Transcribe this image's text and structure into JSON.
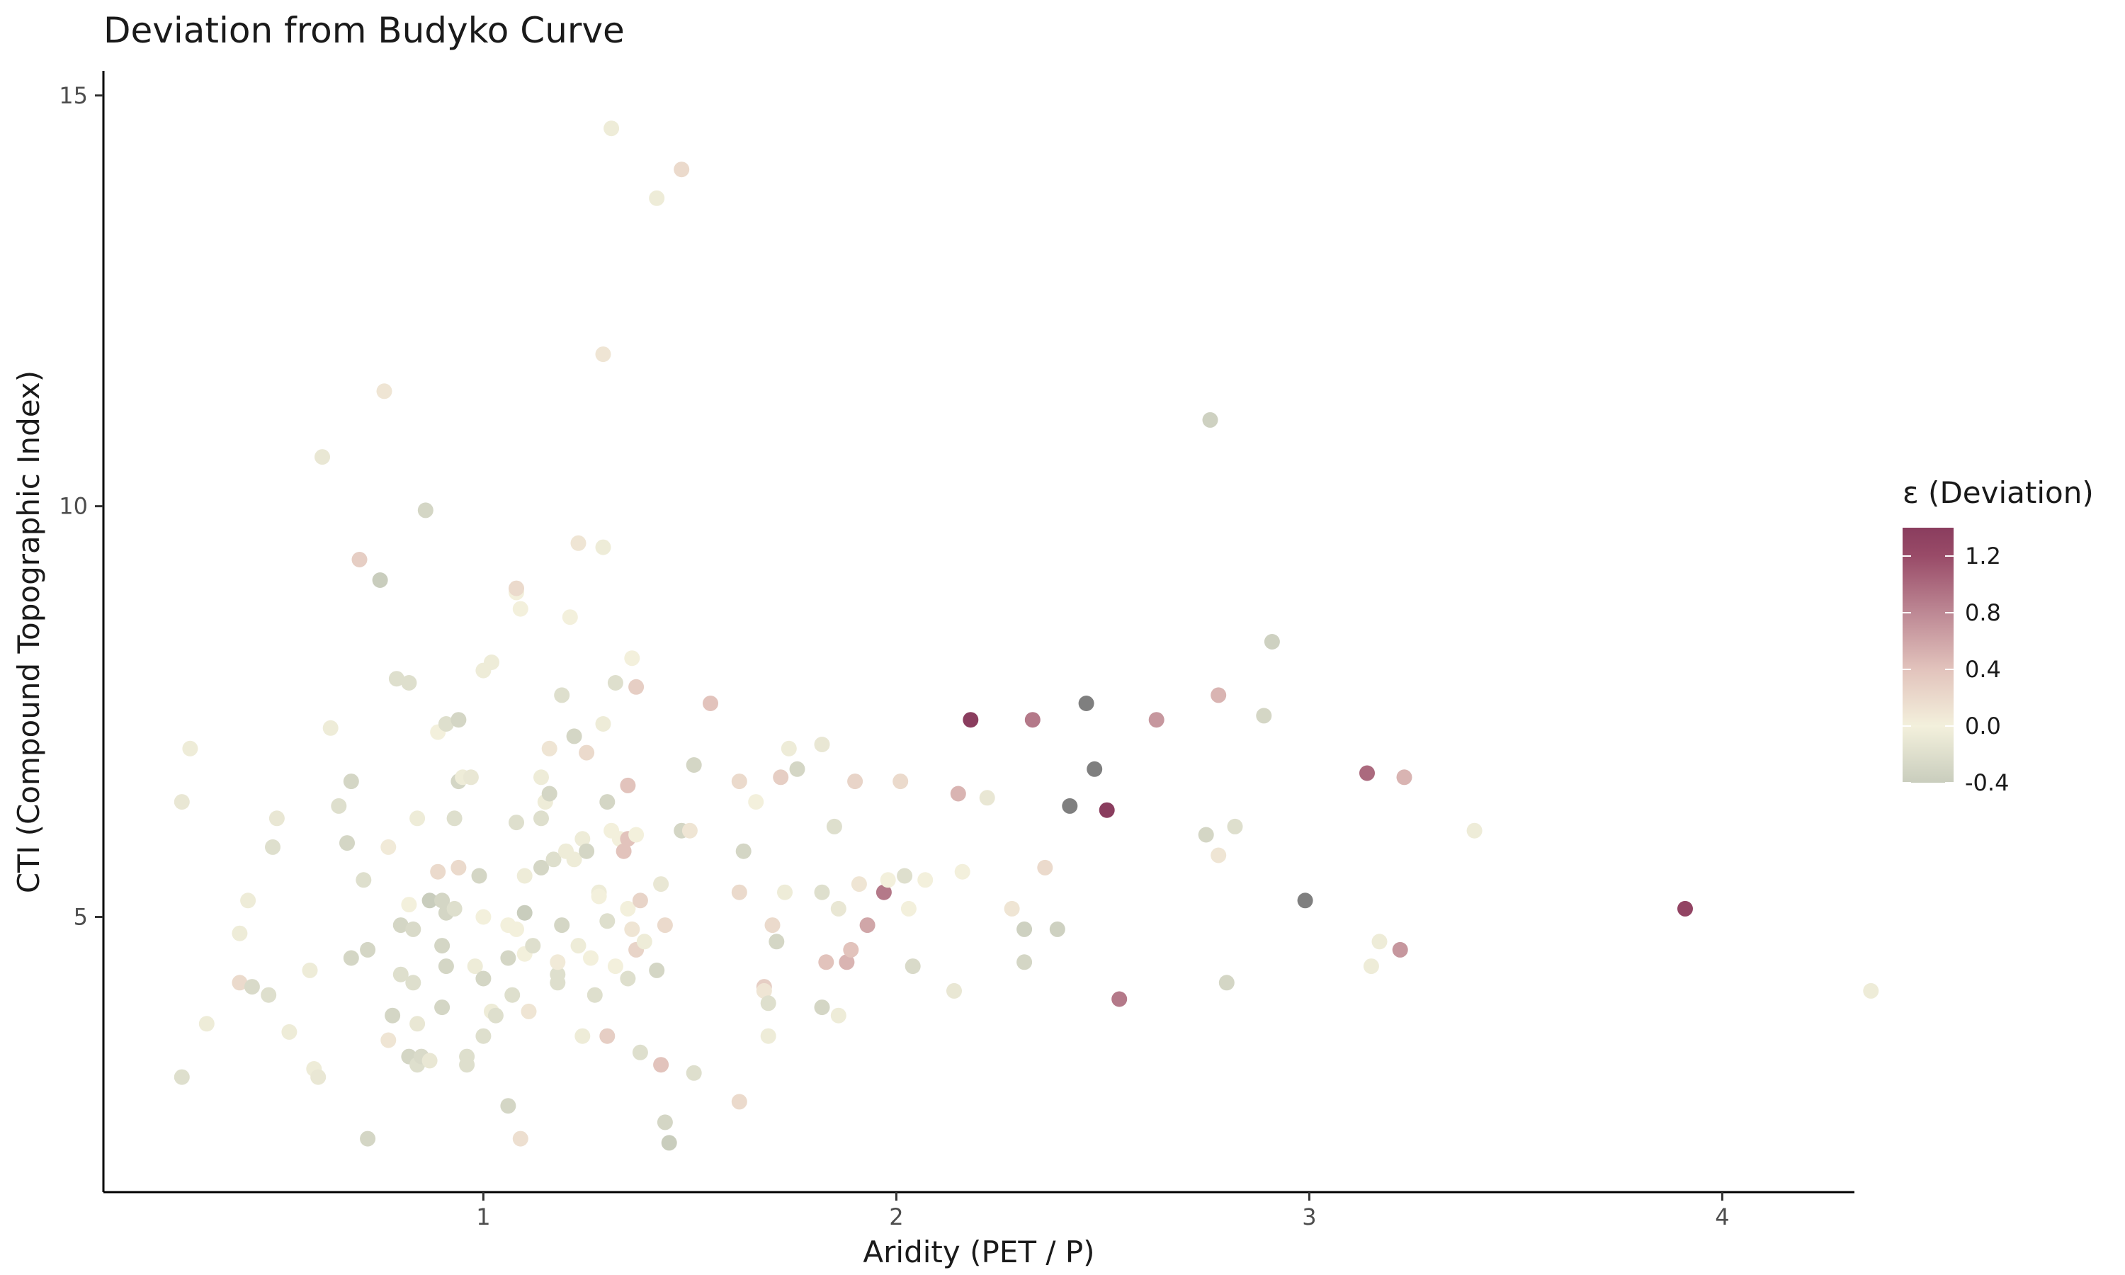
{
  "chart_data": {
    "type": "scatter",
    "title": "Deviation from Budyko Curve",
    "xlabel": "Aridity (PET / P)",
    "ylabel": "CTI (Compound Topographic Index)",
    "xlim": [
      0.08,
      4.32
    ],
    "ylim": [
      1.65,
      15.3
    ],
    "xticks": [
      1,
      2,
      3,
      4
    ],
    "yticks": [
      5,
      10,
      15
    ],
    "grid": false,
    "legend": {
      "title": "ε (Deviation)",
      "position": "right",
      "ticks": [
        1.2,
        0.8,
        0.4,
        0.0,
        -0.4
      ],
      "tick_labels": [
        "1.2",
        "0.8",
        "0.4",
        "0.0",
        "-0.4"
      ],
      "range": [
        -0.4,
        1.4
      ],
      "colors": [
        {
          "v": -0.4,
          "c": "#c9cdbd"
        },
        {
          "v": 0.0,
          "c": "#f3f0dc"
        },
        {
          "v": 0.4,
          "c": "#e2c3bc"
        },
        {
          "v": 0.8,
          "c": "#bd8894"
        },
        {
          "v": 1.2,
          "c": "#994b68"
        },
        {
          "v": 1.4,
          "c": "#8a3d5e"
        }
      ],
      "out_of_range_color": "#7f7f7f"
    },
    "points": [
      {
        "x": 0.27,
        "y": 6.4,
        "e": -0.1
      },
      {
        "x": 0.29,
        "y": 7.05,
        "e": -0.05
      },
      {
        "x": 0.27,
        "y": 3.05,
        "e": -0.2
      },
      {
        "x": 0.33,
        "y": 3.7,
        "e": -0.05
      },
      {
        "x": 0.41,
        "y": 4.2,
        "e": 0.2
      },
      {
        "x": 0.41,
        "y": 4.8,
        "e": -0.05
      },
      {
        "x": 0.44,
        "y": 4.15,
        "e": -0.25
      },
      {
        "x": 0.43,
        "y": 5.2,
        "e": -0.05
      },
      {
        "x": 0.48,
        "y": 4.05,
        "e": -0.2
      },
      {
        "x": 0.49,
        "y": 5.85,
        "e": -0.2
      },
      {
        "x": 0.5,
        "y": 6.2,
        "e": -0.1
      },
      {
        "x": 0.53,
        "y": 3.6,
        "e": -0.05
      },
      {
        "x": 0.58,
        "y": 4.35,
        "e": -0.05
      },
      {
        "x": 0.59,
        "y": 3.15,
        "e": -0.05
      },
      {
        "x": 0.6,
        "y": 3.05,
        "e": -0.1
      },
      {
        "x": 0.61,
        "y": 10.6,
        "e": -0.1
      },
      {
        "x": 0.63,
        "y": 7.3,
        "e": -0.05
      },
      {
        "x": 0.65,
        "y": 6.35,
        "e": -0.2
      },
      {
        "x": 0.67,
        "y": 5.9,
        "e": -0.3
      },
      {
        "x": 0.68,
        "y": 6.65,
        "e": -0.3
      },
      {
        "x": 0.68,
        "y": 4.5,
        "e": -0.3
      },
      {
        "x": 0.7,
        "y": 9.35,
        "e": 0.3
      },
      {
        "x": 0.71,
        "y": 5.45,
        "e": -0.2
      },
      {
        "x": 0.72,
        "y": 2.3,
        "e": -0.3
      },
      {
        "x": 0.72,
        "y": 4.6,
        "e": -0.3
      },
      {
        "x": 0.75,
        "y": 9.1,
        "e": -0.5
      },
      {
        "x": 0.76,
        "y": 11.4,
        "e": 0.1
      },
      {
        "x": 0.77,
        "y": 3.5,
        "e": 0.1
      },
      {
        "x": 0.77,
        "y": 5.85,
        "e": 0.05
      },
      {
        "x": 0.78,
        "y": 3.8,
        "e": -0.3
      },
      {
        "x": 0.79,
        "y": 7.9,
        "e": -0.2
      },
      {
        "x": 0.8,
        "y": 4.9,
        "e": -0.3
      },
      {
        "x": 0.8,
        "y": 4.3,
        "e": -0.2
      },
      {
        "x": 0.82,
        "y": 7.85,
        "e": -0.2
      },
      {
        "x": 0.82,
        "y": 5.15,
        "e": 0.0
      },
      {
        "x": 0.82,
        "y": 3.3,
        "e": -0.3
      },
      {
        "x": 0.83,
        "y": 4.85,
        "e": -0.25
      },
      {
        "x": 0.84,
        "y": 6.2,
        "e": -0.05
      },
      {
        "x": 0.83,
        "y": 4.2,
        "e": -0.2
      },
      {
        "x": 0.84,
        "y": 3.2,
        "e": -0.2
      },
      {
        "x": 0.84,
        "y": 3.7,
        "e": -0.1
      },
      {
        "x": 0.85,
        "y": 3.3,
        "e": -0.25
      },
      {
        "x": 0.86,
        "y": 9.95,
        "e": -0.3
      },
      {
        "x": 0.87,
        "y": 5.2,
        "e": -0.4
      },
      {
        "x": 0.87,
        "y": 3.25,
        "e": -0.1
      },
      {
        "x": 0.89,
        "y": 7.25,
        "e": 0.0
      },
      {
        "x": 0.89,
        "y": 5.55,
        "e": 0.2
      },
      {
        "x": 0.9,
        "y": 5.2,
        "e": -0.3
      },
      {
        "x": 0.9,
        "y": 4.65,
        "e": -0.3
      },
      {
        "x": 0.9,
        "y": 3.9,
        "e": -0.3
      },
      {
        "x": 0.91,
        "y": 7.35,
        "e": -0.2
      },
      {
        "x": 0.91,
        "y": 4.4,
        "e": -0.3
      },
      {
        "x": 0.91,
        "y": 5.05,
        "e": -0.3
      },
      {
        "x": 0.93,
        "y": 6.2,
        "e": -0.2
      },
      {
        "x": 0.93,
        "y": 5.1,
        "e": -0.2
      },
      {
        "x": 0.94,
        "y": 6.65,
        "e": -0.3
      },
      {
        "x": 0.94,
        "y": 7.4,
        "e": -0.3
      },
      {
        "x": 0.94,
        "y": 5.6,
        "e": 0.2
      },
      {
        "x": 0.95,
        "y": 6.7,
        "e": -0.05
      },
      {
        "x": 0.96,
        "y": 3.3,
        "e": -0.2
      },
      {
        "x": 0.96,
        "y": 3.2,
        "e": -0.2
      },
      {
        "x": 0.97,
        "y": 6.7,
        "e": -0.1
      },
      {
        "x": 0.98,
        "y": 4.4,
        "e": -0.05
      },
      {
        "x": 0.99,
        "y": 5.5,
        "e": -0.3
      },
      {
        "x": 1.0,
        "y": 4.25,
        "e": -0.3
      },
      {
        "x": 1.0,
        "y": 3.55,
        "e": -0.2
      },
      {
        "x": 1.0,
        "y": 5.0,
        "e": 0.0
      },
      {
        "x": 1.0,
        "y": 8.0,
        "e": -0.05
      },
      {
        "x": 1.02,
        "y": 8.1,
        "e": -0.05
      },
      {
        "x": 1.02,
        "y": 3.85,
        "e": -0.05
      },
      {
        "x": 1.03,
        "y": 3.8,
        "e": -0.2
      },
      {
        "x": 1.06,
        "y": 4.5,
        "e": -0.3
      },
      {
        "x": 1.06,
        "y": 4.9,
        "e": 0.0
      },
      {
        "x": 1.06,
        "y": 2.7,
        "e": -0.3
      },
      {
        "x": 1.07,
        "y": 4.05,
        "e": -0.2
      },
      {
        "x": 1.08,
        "y": 6.15,
        "e": -0.2
      },
      {
        "x": 1.08,
        "y": 4.85,
        "e": 0.0
      },
      {
        "x": 1.08,
        "y": 8.95,
        "e": 0.0
      },
      {
        "x": 1.08,
        "y": 9.0,
        "e": 0.2
      },
      {
        "x": 1.09,
        "y": 8.75,
        "e": 0.0
      },
      {
        "x": 1.09,
        "y": 2.3,
        "e": 0.15
      },
      {
        "x": 1.1,
        "y": 5.05,
        "e": -0.4
      },
      {
        "x": 1.1,
        "y": 5.5,
        "e": -0.05
      },
      {
        "x": 1.1,
        "y": 4.55,
        "e": 0.0
      },
      {
        "x": 1.11,
        "y": 3.85,
        "e": 0.1
      },
      {
        "x": 1.12,
        "y": 4.65,
        "e": -0.2
      },
      {
        "x": 1.14,
        "y": 6.7,
        "e": -0.05
      },
      {
        "x": 1.14,
        "y": 6.2,
        "e": -0.2
      },
      {
        "x": 1.14,
        "y": 5.6,
        "e": -0.3
      },
      {
        "x": 1.15,
        "y": 6.4,
        "e": -0.05
      },
      {
        "x": 1.16,
        "y": 6.5,
        "e": -0.3
      },
      {
        "x": 1.16,
        "y": 7.05,
        "e": 0.1
      },
      {
        "x": 1.17,
        "y": 5.7,
        "e": -0.2
      },
      {
        "x": 1.18,
        "y": 4.3,
        "e": -0.2
      },
      {
        "x": 1.18,
        "y": 4.2,
        "e": -0.2
      },
      {
        "x": 1.18,
        "y": 4.45,
        "e": 0.05
      },
      {
        "x": 1.19,
        "y": 7.7,
        "e": -0.2
      },
      {
        "x": 1.19,
        "y": 4.9,
        "e": -0.3
      },
      {
        "x": 1.2,
        "y": 5.8,
        "e": -0.05
      },
      {
        "x": 1.21,
        "y": 8.65,
        "e": 0.0
      },
      {
        "x": 1.22,
        "y": 7.2,
        "e": -0.3
      },
      {
        "x": 1.22,
        "y": 5.7,
        "e": -0.05
      },
      {
        "x": 1.23,
        "y": 9.55,
        "e": 0.1
      },
      {
        "x": 1.23,
        "y": 4.65,
        "e": -0.05
      },
      {
        "x": 1.24,
        "y": 5.95,
        "e": -0.05
      },
      {
        "x": 1.24,
        "y": 3.55,
        "e": -0.05
      },
      {
        "x": 1.25,
        "y": 7.0,
        "e": 0.2
      },
      {
        "x": 1.25,
        "y": 5.8,
        "e": -0.3
      },
      {
        "x": 1.26,
        "y": 4.5,
        "e": 0.0
      },
      {
        "x": 1.27,
        "y": 4.05,
        "e": -0.2
      },
      {
        "x": 1.28,
        "y": 5.3,
        "e": -0.05
      },
      {
        "x": 1.28,
        "y": 5.25,
        "e": 0.0
      },
      {
        "x": 1.29,
        "y": 11.85,
        "e": 0.1
      },
      {
        "x": 1.29,
        "y": 9.5,
        "e": -0.05
      },
      {
        "x": 1.29,
        "y": 7.35,
        "e": -0.05
      },
      {
        "x": 1.3,
        "y": 6.4,
        "e": -0.3
      },
      {
        "x": 1.3,
        "y": 4.95,
        "e": -0.2
      },
      {
        "x": 1.3,
        "y": 3.55,
        "e": 0.3
      },
      {
        "x": 1.31,
        "y": 14.6,
        "e": -0.05
      },
      {
        "x": 1.31,
        "y": 6.05,
        "e": 0.0
      },
      {
        "x": 1.32,
        "y": 7.85,
        "e": -0.2
      },
      {
        "x": 1.32,
        "y": 4.4,
        "e": 0.0
      },
      {
        "x": 1.33,
        "y": 5.95,
        "e": 0.0
      },
      {
        "x": 1.34,
        "y": 5.8,
        "e": 0.4
      },
      {
        "x": 1.35,
        "y": 6.6,
        "e": 0.4
      },
      {
        "x": 1.35,
        "y": 4.25,
        "e": -0.2
      },
      {
        "x": 1.35,
        "y": 5.1,
        "e": 0.0
      },
      {
        "x": 1.35,
        "y": 5.95,
        "e": 0.4
      },
      {
        "x": 1.36,
        "y": 8.15,
        "e": 0.0
      },
      {
        "x": 1.36,
        "y": 4.85,
        "e": 0.1
      },
      {
        "x": 1.37,
        "y": 4.6,
        "e": 0.25
      },
      {
        "x": 1.37,
        "y": 7.8,
        "e": 0.3
      },
      {
        "x": 1.37,
        "y": 6.0,
        "e": 0.0
      },
      {
        "x": 1.38,
        "y": 5.2,
        "e": 0.25
      },
      {
        "x": 1.38,
        "y": 3.35,
        "e": -0.2
      },
      {
        "x": 1.39,
        "y": 4.7,
        "e": -0.05
      },
      {
        "x": 1.42,
        "y": 4.35,
        "e": -0.3
      },
      {
        "x": 1.42,
        "y": 13.75,
        "e": -0.05
      },
      {
        "x": 1.43,
        "y": 5.4,
        "e": -0.1
      },
      {
        "x": 1.43,
        "y": 3.2,
        "e": 0.4
      },
      {
        "x": 1.44,
        "y": 4.9,
        "e": 0.2
      },
      {
        "x": 1.44,
        "y": 2.5,
        "e": -0.3
      },
      {
        "x": 1.45,
        "y": 2.25,
        "e": -0.5
      },
      {
        "x": 1.48,
        "y": 6.05,
        "e": -0.3
      },
      {
        "x": 1.48,
        "y": 14.1,
        "e": 0.2
      },
      {
        "x": 1.5,
        "y": 6.05,
        "e": 0.1
      },
      {
        "x": 1.51,
        "y": 6.85,
        "e": -0.3
      },
      {
        "x": 1.51,
        "y": 3.1,
        "e": -0.2
      },
      {
        "x": 1.55,
        "y": 7.6,
        "e": 0.4
      },
      {
        "x": 1.62,
        "y": 6.65,
        "e": 0.2
      },
      {
        "x": 1.62,
        "y": 5.3,
        "e": 0.2
      },
      {
        "x": 1.62,
        "y": 2.75,
        "e": 0.2
      },
      {
        "x": 1.63,
        "y": 5.8,
        "e": -0.3
      },
      {
        "x": 1.66,
        "y": 6.4,
        "e": 0.0
      },
      {
        "x": 1.68,
        "y": 4.15,
        "e": 0.3
      },
      {
        "x": 1.68,
        "y": 4.1,
        "e": 0.1
      },
      {
        "x": 1.69,
        "y": 3.95,
        "e": -0.2
      },
      {
        "x": 1.69,
        "y": 3.55,
        "e": -0.05
      },
      {
        "x": 1.7,
        "y": 4.9,
        "e": 0.2
      },
      {
        "x": 1.71,
        "y": 4.7,
        "e": -0.3
      },
      {
        "x": 1.72,
        "y": 6.7,
        "e": 0.3
      },
      {
        "x": 1.73,
        "y": 5.3,
        "e": -0.05
      },
      {
        "x": 1.74,
        "y": 7.05,
        "e": -0.05
      },
      {
        "x": 1.76,
        "y": 6.8,
        "e": -0.3
      },
      {
        "x": 1.82,
        "y": 7.1,
        "e": -0.1
      },
      {
        "x": 1.82,
        "y": 5.3,
        "e": -0.2
      },
      {
        "x": 1.82,
        "y": 3.9,
        "e": -0.3
      },
      {
        "x": 1.83,
        "y": 4.45,
        "e": 0.4
      },
      {
        "x": 1.85,
        "y": 6.1,
        "e": -0.2
      },
      {
        "x": 1.86,
        "y": 5.1,
        "e": -0.1
      },
      {
        "x": 1.86,
        "y": 3.8,
        "e": -0.05
      },
      {
        "x": 1.88,
        "y": 4.45,
        "e": 0.5
      },
      {
        "x": 1.89,
        "y": 4.6,
        "e": 0.4
      },
      {
        "x": 1.9,
        "y": 6.65,
        "e": 0.25
      },
      {
        "x": 1.91,
        "y": 5.4,
        "e": 0.1
      },
      {
        "x": 1.93,
        "y": 4.9,
        "e": 0.6
      },
      {
        "x": 1.97,
        "y": 5.3,
        "e": 0.9
      },
      {
        "x": 1.98,
        "y": 5.45,
        "e": 0.0
      },
      {
        "x": 2.01,
        "y": 6.65,
        "e": 0.2
      },
      {
        "x": 2.02,
        "y": 5.5,
        "e": -0.2
      },
      {
        "x": 2.03,
        "y": 5.1,
        "e": 0.0
      },
      {
        "x": 2.04,
        "y": 4.4,
        "e": -0.25
      },
      {
        "x": 2.07,
        "y": 5.45,
        "e": 0.0
      },
      {
        "x": 2.14,
        "y": 4.1,
        "e": -0.1
      },
      {
        "x": 2.15,
        "y": 6.5,
        "e": 0.5
      },
      {
        "x": 2.16,
        "y": 5.55,
        "e": 0.0
      },
      {
        "x": 2.18,
        "y": 7.4,
        "e": 1.4
      },
      {
        "x": 2.22,
        "y": 6.45,
        "e": -0.1
      },
      {
        "x": 2.28,
        "y": 5.1,
        "e": 0.1
      },
      {
        "x": 2.31,
        "y": 4.85,
        "e": -0.35
      },
      {
        "x": 2.31,
        "y": 4.45,
        "e": -0.3
      },
      {
        "x": 2.33,
        "y": 7.4,
        "e": 0.9
      },
      {
        "x": 2.36,
        "y": 5.6,
        "e": 0.2
      },
      {
        "x": 2.39,
        "y": 4.85,
        "e": -0.35
      },
      {
        "x": 2.42,
        "y": 6.35,
        "e": -99
      },
      {
        "x": 2.46,
        "y": 7.6,
        "e": -99
      },
      {
        "x": 2.48,
        "y": 6.8,
        "e": -99
      },
      {
        "x": 2.51,
        "y": 6.3,
        "e": 1.45
      },
      {
        "x": 2.54,
        "y": 4.0,
        "e": 0.9
      },
      {
        "x": 2.63,
        "y": 7.4,
        "e": 0.7
      },
      {
        "x": 2.75,
        "y": 6.0,
        "e": -0.3
      },
      {
        "x": 2.76,
        "y": 11.05,
        "e": -0.35
      },
      {
        "x": 2.78,
        "y": 7.7,
        "e": 0.5
      },
      {
        "x": 2.78,
        "y": 5.75,
        "e": 0.1
      },
      {
        "x": 2.8,
        "y": 4.2,
        "e": -0.3
      },
      {
        "x": 2.82,
        "y": 6.1,
        "e": -0.2
      },
      {
        "x": 2.89,
        "y": 7.45,
        "e": -0.3
      },
      {
        "x": 2.91,
        "y": 8.35,
        "e": -0.35
      },
      {
        "x": 2.99,
        "y": 5.2,
        "e": -99
      },
      {
        "x": 3.14,
        "y": 6.75,
        "e": 1.0
      },
      {
        "x": 3.15,
        "y": 4.4,
        "e": -0.05
      },
      {
        "x": 3.17,
        "y": 4.7,
        "e": -0.05
      },
      {
        "x": 3.22,
        "y": 4.6,
        "e": 0.7
      },
      {
        "x": 3.23,
        "y": 6.7,
        "e": 0.5
      },
      {
        "x": 3.4,
        "y": 6.05,
        "e": -0.05
      },
      {
        "x": 3.91,
        "y": 5.1,
        "e": 1.3
      },
      {
        "x": 4.36,
        "y": 4.1,
        "e": -0.05
      }
    ]
  }
}
